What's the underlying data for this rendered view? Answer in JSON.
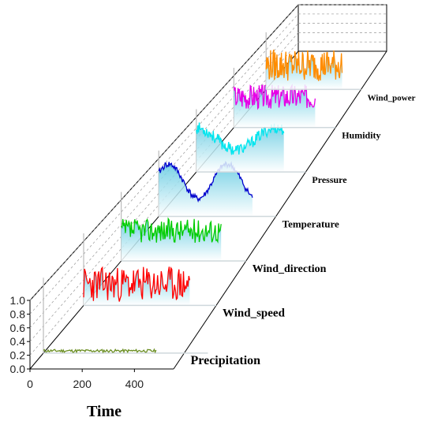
{
  "chart_data": {
    "type": "line",
    "subtype": "3d-waterfall",
    "xlabel": "Time",
    "x_ticks": [
      "0",
      "200",
      "400"
    ],
    "y_ticks": [
      "0.0",
      "0.2",
      "0.4",
      "0.6",
      "0.8",
      "1.0"
    ],
    "ylim": [
      0,
      1
    ],
    "xlim": [
      0,
      550
    ],
    "grid": true,
    "series": [
      {
        "name": "Precipitation",
        "color": "#6b8e23",
        "base": 0.03,
        "amp": 0.01,
        "trend": "flat",
        "spiky": 0.02,
        "seed": 11
      },
      {
        "name": "Wind_speed",
        "color": "#ff0000",
        "base": 0.3,
        "amp": 0.12,
        "trend": "noise",
        "spiky": 0.25,
        "seed": 23
      },
      {
        "name": "Wind_direction",
        "color": "#00cc00",
        "base": 0.45,
        "amp": 0.15,
        "trend": "noise",
        "spiky": 0.18,
        "seed": 37
      },
      {
        "name": "Temperature",
        "color": "#0000cd",
        "base": 0.55,
        "amp": 0.3,
        "trend": "wave",
        "spiky": 0.05,
        "seed": 41
      },
      {
        "name": "Pressure",
        "color": "#00e5ee",
        "base": 0.55,
        "amp": 0.18,
        "trend": "valley",
        "spiky": 0.1,
        "seed": 53
      },
      {
        "name": "Humidity",
        "color": "#e600e6",
        "base": 0.55,
        "amp": 0.25,
        "trend": "noise",
        "spiky": 0.22,
        "seed": 67
      },
      {
        "name": "Wind_power",
        "color": "#ff8c00",
        "base": 0.45,
        "amp": 0.3,
        "trend": "noise",
        "spiky": 0.3,
        "seed": 79
      }
    ]
  }
}
